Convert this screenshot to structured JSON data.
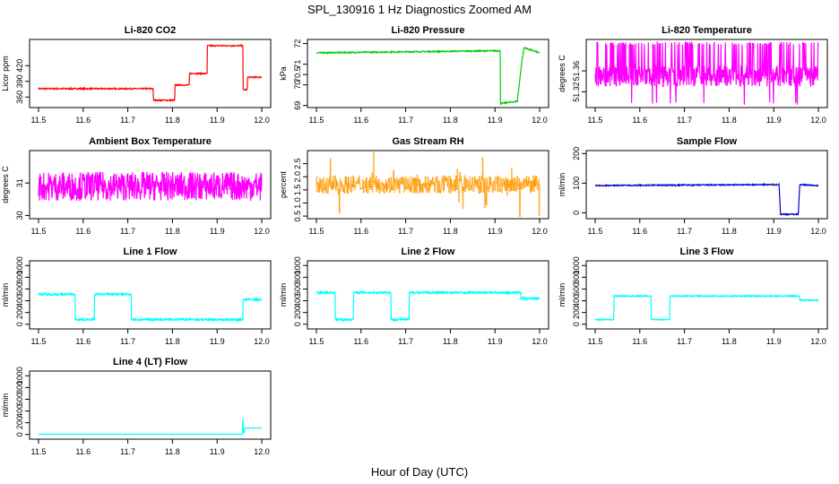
{
  "figure": {
    "title": "SPL_130916  1 Hz Diagnostics Zoomed AM",
    "xlabel": "Hour of Day (UTC)"
  },
  "chart_data": [
    {
      "type": "line",
      "title": "Li-820 CO2",
      "ylabel": "Licor ppm",
      "color": "#ff0000",
      "xlim": [
        11.5,
        12.0
      ],
      "ylim": [
        340,
        470
      ],
      "yticks": [
        360,
        390,
        420
      ],
      "xticks": [
        11.5,
        11.6,
        11.7,
        11.8,
        11.9,
        12.0
      ],
      "series": [
        {
          "x": [
            11.5,
            11.757,
            11.757,
            11.805,
            11.805,
            11.838,
            11.838,
            11.878,
            11.878,
            11.958,
            11.958,
            11.968,
            11.968,
            12.0
          ],
          "y": [
            376,
            376,
            354,
            354,
            383,
            383,
            405,
            405,
            458,
            458,
            374,
            374,
            398,
            398
          ]
        }
      ],
      "noise": 1.2
    },
    {
      "type": "line",
      "title": "Li-820 Pressure",
      "ylabel": "kPa",
      "color": "#00cc00",
      "xlim": [
        11.5,
        12.0
      ],
      "ylim": [
        68.9,
        72.2
      ],
      "yticks": [
        69.0,
        70.0,
        71.0,
        72.0
      ],
      "ytick_labels_extra": [
        70.5
      ],
      "xticks": [
        11.5,
        11.6,
        11.7,
        11.8,
        11.9,
        12.0
      ],
      "series": [
        {
          "x": [
            11.5,
            11.9,
            11.912,
            11.912,
            11.95,
            11.96,
            11.965,
            12.0
          ],
          "y": [
            71.55,
            71.65,
            71.65,
            69.1,
            69.2,
            71.1,
            71.8,
            71.55
          ]
        }
      ],
      "noise": 0.03
    },
    {
      "type": "line",
      "title": "Li-820 Temperature",
      "ylabel": "degrees C",
      "color": "#ff00ff",
      "xlim": [
        11.5,
        12.0
      ],
      "ylim": [
        51.29,
        51.42
      ],
      "yticks": [
        51.32,
        51.36
      ],
      "xticks": [
        11.5,
        11.6,
        11.7,
        11.8,
        11.9,
        12.0
      ],
      "series": [
        {
          "x": [
            11.5,
            12.0
          ],
          "y": [
            51.35,
            51.35
          ]
        }
      ],
      "noise": 0.02,
      "spikes_up": 51.415,
      "spikes_down": 51.295
    },
    {
      "type": "line",
      "title": "Ambient Box Temperature",
      "ylabel": "degrees C",
      "color": "#ff00ff",
      "xlim": [
        11.5,
        12.0
      ],
      "ylim": [
        29.9,
        32.0
      ],
      "yticks": [
        30.0,
        31.0
      ],
      "xticks": [
        11.5,
        11.6,
        11.7,
        11.8,
        11.9,
        12.0
      ],
      "series": [
        {
          "x": [
            11.5,
            12.0
          ],
          "y": [
            30.9,
            30.9
          ]
        }
      ],
      "noise": 0.45
    },
    {
      "type": "scatter",
      "title": "Gas Stream RH",
      "ylabel": "percent",
      "color": "#ff9900",
      "xlim": [
        11.5,
        12.0
      ],
      "ylim": [
        0.4,
        3.0
      ],
      "yticks": [
        0.5,
        1.0,
        1.5,
        2.0,
        2.5
      ],
      "xticks": [
        11.5,
        11.6,
        11.7,
        11.8,
        11.9,
        12.0
      ],
      "series": [
        {
          "x": [
            11.5,
            12.0
          ],
          "y": [
            1.7,
            1.7
          ]
        }
      ],
      "noise": 0.35
    },
    {
      "type": "line",
      "title": "Sample Flow",
      "ylabel": "ml/min",
      "color": "#0000cc",
      "xlim": [
        11.5,
        12.0
      ],
      "ylim": [
        -20,
        210
      ],
      "yticks": [
        0,
        100,
        200
      ],
      "xticks": [
        11.5,
        11.6,
        11.7,
        11.8,
        11.9,
        12.0
      ],
      "series": [
        {
          "x": [
            11.5,
            11.912,
            11.915,
            11.955,
            11.958,
            12.0
          ],
          "y": [
            92,
            95,
            -5,
            -5,
            95,
            92
          ]
        }
      ],
      "noise": 2
    },
    {
      "type": "line",
      "title": "Line 1 Flow",
      "ylabel": "ml/min",
      "color": "#00ffff",
      "xlim": [
        11.5,
        12.0
      ],
      "ylim": [
        -80,
        1080
      ],
      "yticks": [
        0,
        200,
        400,
        600,
        800,
        1000
      ],
      "xticks": [
        11.5,
        11.6,
        11.7,
        11.8,
        11.9,
        12.0
      ],
      "series": [
        {
          "x": [
            11.5,
            11.582,
            11.582,
            11.625,
            11.625,
            11.708,
            11.708,
            11.958,
            11.958,
            12.0
          ],
          "y": [
            510,
            510,
            80,
            80,
            510,
            510,
            80,
            80,
            420,
            420
          ]
        }
      ],
      "noise": 18
    },
    {
      "type": "line",
      "title": "Line 2 Flow",
      "ylabel": "ml/min",
      "color": "#00ffff",
      "xlim": [
        11.5,
        12.0
      ],
      "ylim": [
        -80,
        1080
      ],
      "yticks": [
        0,
        200,
        400,
        600,
        800,
        1000
      ],
      "xticks": [
        11.5,
        11.6,
        11.7,
        11.8,
        11.9,
        12.0
      ],
      "series": [
        {
          "x": [
            11.5,
            11.542,
            11.542,
            11.583,
            11.583,
            11.667,
            11.667,
            11.708,
            11.708,
            11.958,
            11.958,
            12.0
          ],
          "y": [
            540,
            540,
            80,
            80,
            540,
            540,
            80,
            80,
            540,
            540,
            440,
            440
          ]
        }
      ],
      "noise": 18
    },
    {
      "type": "line",
      "title": "Line 3 Flow",
      "ylabel": "ml/min",
      "color": "#00ffff",
      "xlim": [
        11.5,
        12.0
      ],
      "ylim": [
        -80,
        1080
      ],
      "yticks": [
        0,
        200,
        400,
        600,
        800,
        1000
      ],
      "xticks": [
        11.5,
        11.6,
        11.7,
        11.8,
        11.9,
        12.0
      ],
      "series": [
        {
          "x": [
            11.5,
            11.542,
            11.542,
            11.625,
            11.625,
            11.667,
            11.667,
            11.958,
            11.958,
            12.0
          ],
          "y": [
            80,
            80,
            480,
            480,
            80,
            80,
            480,
            480,
            410,
            410
          ]
        }
      ],
      "noise": 10
    },
    {
      "type": "line",
      "title": "Line 4 (LT) Flow",
      "ylabel": "ml/min",
      "color": "#00ffff",
      "xlim": [
        11.5,
        12.0
      ],
      "ylim": [
        -80,
        1080
      ],
      "yticks": [
        0,
        200,
        400,
        600,
        800,
        1000
      ],
      "xticks": [
        11.5,
        11.6,
        11.7,
        11.8,
        11.9,
        12.0
      ],
      "series": [
        {
          "x": [
            11.5,
            11.957,
            11.957,
            11.959,
            11.961,
            11.962,
            12.0
          ],
          "y": [
            5,
            5,
            350,
            30,
            30,
            110,
            110
          ]
        }
      ],
      "noise": 1
    }
  ]
}
